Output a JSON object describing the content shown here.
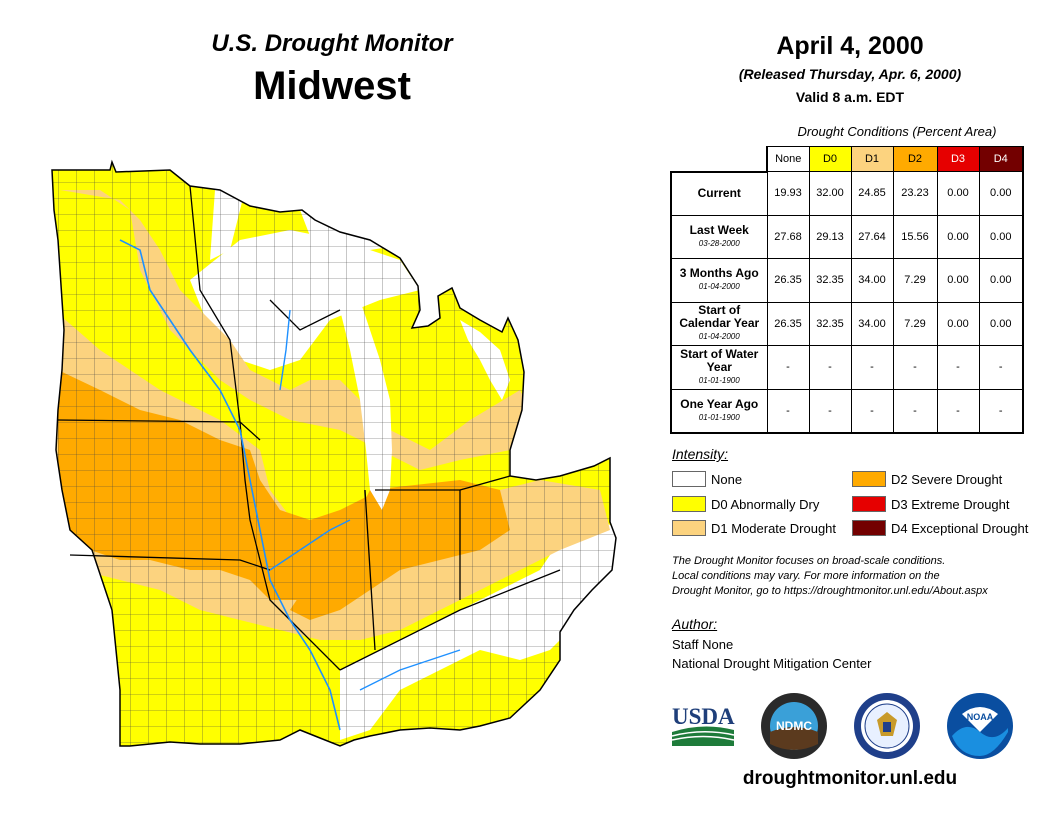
{
  "header": {
    "title": "U.S. Drought Monitor",
    "region": "Midwest",
    "date": "April 4, 2000",
    "released": "(Released Thursday, Apr. 6, 2000)",
    "valid": "Valid 8 a.m. EDT"
  },
  "table": {
    "caption": "Drought Conditions (Percent Area)",
    "columns": [
      {
        "label": "None",
        "color": "#ffffff",
        "text_color": "#000000"
      },
      {
        "label": "D0",
        "color": "#ffff00",
        "text_color": "#000000"
      },
      {
        "label": "D1",
        "color": "#fcd37f",
        "text_color": "#000000"
      },
      {
        "label": "D2",
        "color": "#ffaa00",
        "text_color": "#000000"
      },
      {
        "label": "D3",
        "color": "#e60000",
        "text_color": "#ffffff"
      },
      {
        "label": "D4",
        "color": "#730000",
        "text_color": "#ffffff"
      }
    ],
    "rows": [
      {
        "label": "Current",
        "sub": "",
        "values": [
          "19.93",
          "32.00",
          "24.85",
          "23.23",
          "0.00",
          "0.00"
        ]
      },
      {
        "label": "Last Week",
        "sub": "03-28-2000",
        "values": [
          "27.68",
          "29.13",
          "27.64",
          "15.56",
          "0.00",
          "0.00"
        ]
      },
      {
        "label": "3 Months Ago",
        "sub": "01-04-2000",
        "values": [
          "26.35",
          "32.35",
          "34.00",
          "7.29",
          "0.00",
          "0.00"
        ]
      },
      {
        "label": "Start of Calendar Year",
        "sub": "01-04-2000",
        "values": [
          "26.35",
          "32.35",
          "34.00",
          "7.29",
          "0.00",
          "0.00"
        ]
      },
      {
        "label": "Start of Water Year",
        "sub": "01-01-1900",
        "values": [
          "-",
          "-",
          "-",
          "-",
          "-",
          "-"
        ]
      },
      {
        "label": "One Year Ago",
        "sub": "01-01-1900",
        "values": [
          "-",
          "-",
          "-",
          "-",
          "-",
          "-"
        ]
      }
    ]
  },
  "legend": {
    "title": "Intensity:",
    "items": [
      {
        "label": "None",
        "color": "#ffffff"
      },
      {
        "label": "D0 Abnormally Dry",
        "color": "#ffff00"
      },
      {
        "label": "D1 Moderate Drought",
        "color": "#fcd37f"
      },
      {
        "label": "D2 Severe Drought",
        "color": "#ffaa00"
      },
      {
        "label": "D3 Extreme Drought",
        "color": "#e60000"
      },
      {
        "label": "D4 Exceptional Drought",
        "color": "#730000"
      }
    ]
  },
  "note": {
    "line1": "The Drought Monitor focuses on broad-scale conditions.",
    "line2": "Local conditions may vary. For more information on the",
    "line3": "Drought Monitor, go to https://droughtmonitor.unl.edu/About.aspx"
  },
  "author": {
    "title": "Author:",
    "name": "Staff None",
    "org": "National Drought Mitigation Center"
  },
  "logos": {
    "usda": "USDA",
    "ndmc": "NDMC",
    "noaa": "NOAA"
  },
  "website": "droughtmonitor.unl.edu"
}
